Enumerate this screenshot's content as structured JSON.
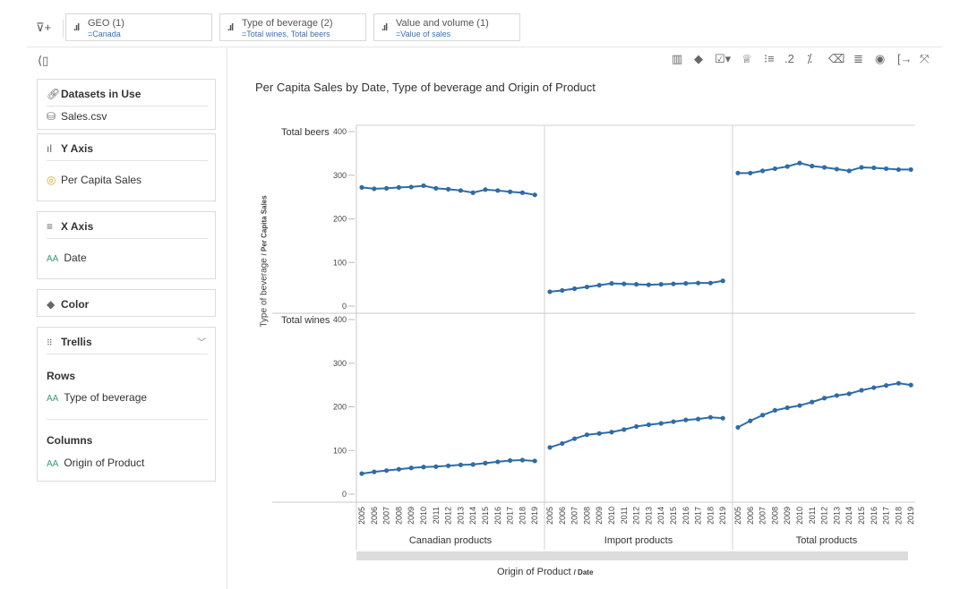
{
  "filter_bar": {
    "chips": [
      {
        "title": "GEO (1)",
        "value": "=Canada"
      },
      {
        "title": "Type of beverage (2)",
        "value": "=Total wines, Total beers"
      },
      {
        "title": "Value and volume (1)",
        "value": "=Value of sales"
      }
    ]
  },
  "panel": {
    "datasets": {
      "title": "Datasets in Use",
      "item": "Sales.csv"
    },
    "y_axis": {
      "title": "Y Axis",
      "item": "Per Capita Sales"
    },
    "x_axis": {
      "title": "X Axis",
      "item": "Date"
    },
    "color": {
      "title": "Color"
    },
    "trellis": {
      "title": "Trellis",
      "rows_label": "Rows",
      "rows_item": "Type of beverage",
      "cols_label": "Columns",
      "cols_item": "Origin of Product"
    }
  },
  "chart_data": {
    "type": "line",
    "title": "Per Capita Sales by Date, Type of beverage and Origin of Product",
    "ylabel_main": "Type of beverage",
    "ylabel_sub": "/ Per Capita Sales",
    "xlabel_main": "Origin of Product",
    "xlabel_sub": "/ Date",
    "ylim": [
      0,
      400
    ],
    "yticks": [
      0,
      100,
      200,
      300,
      400
    ],
    "x": [
      "2005",
      "2006",
      "2007",
      "2008",
      "2009",
      "2010",
      "2011",
      "2012",
      "2013",
      "2014",
      "2015",
      "2016",
      "2017",
      "2018",
      "2019"
    ],
    "columns": [
      "Canadian products",
      "Import products",
      "Total products"
    ],
    "rows": [
      "Total beers",
      "Total wines"
    ],
    "panels": [
      {
        "row": "Total beers",
        "column": "Canadian products",
        "values": [
          272,
          269,
          270,
          272,
          273,
          276,
          270,
          268,
          265,
          260,
          267,
          265,
          262,
          260,
          255
        ]
      },
      {
        "row": "Total beers",
        "column": "Import products",
        "values": [
          33,
          36,
          40,
          44,
          48,
          52,
          51,
          50,
          49,
          50,
          51,
          52,
          53,
          53,
          58
        ]
      },
      {
        "row": "Total beers",
        "column": "Total products",
        "values": [
          305,
          305,
          310,
          315,
          320,
          328,
          321,
          318,
          314,
          310,
          318,
          317,
          315,
          313,
          313
        ]
      },
      {
        "row": "Total wines",
        "column": "Canadian products",
        "values": [
          47,
          51,
          54,
          57,
          60,
          62,
          63,
          65,
          67,
          68,
          71,
          74,
          77,
          78,
          76
        ]
      },
      {
        "row": "Total wines",
        "column": "Import products",
        "values": [
          107,
          116,
          127,
          136,
          139,
          142,
          148,
          155,
          159,
          162,
          166,
          170,
          172,
          176,
          174
        ]
      },
      {
        "row": "Total wines",
        "column": "Total products",
        "values": [
          153,
          168,
          181,
          192,
          198,
          203,
          211,
          220,
          226,
          230,
          238,
          244,
          249,
          254,
          250
        ]
      }
    ],
    "line_color": "#2f6ca6"
  }
}
